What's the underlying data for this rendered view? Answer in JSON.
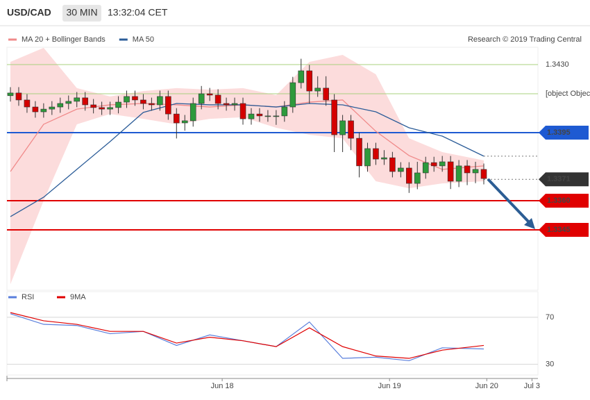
{
  "header": {
    "symbol": "USD/CAD",
    "interval": "30 MIN",
    "time": "13:32:04 CET"
  },
  "chart_data": [
    {
      "type": "candlestick",
      "legend": [
        {
          "name": "MA 20 + Bollinger Bands",
          "color": "#f08a8a"
        },
        {
          "name": "MA 50",
          "color": "#2b5c98"
        }
      ],
      "credit": "Research © 2019 Trading Central",
      "ylim": [
        1.3315,
        1.344
      ],
      "xlim": [
        0,
        57
      ],
      "open": [
        1.3414,
        1.34154,
        1.34118,
        1.34082,
        1.34057,
        1.34071,
        1.34082,
        1.341,
        1.34111,
        1.34129,
        1.34093,
        1.34079,
        1.34071,
        1.34079,
        1.34107,
        1.34136,
        1.34118,
        1.341,
        1.34093,
        1.34136,
        1.34046,
        1.34,
        1.34011,
        1.341,
        1.3415,
        1.34143,
        1.341,
        1.34093,
        1.341,
        1.34021,
        1.34046,
        1.34036,
        1.34036,
        1.34036,
        1.34082,
        1.34207,
        1.34268,
        1.34164,
        1.34179,
        1.34118,
        1.33939,
        1.34011,
        1.33921,
        1.33779,
        1.33868,
        1.33814,
        1.33821,
        1.3375,
        1.33768,
        1.33689,
        1.33743,
        1.33796,
        1.33779,
        1.338,
        1.337,
        1.33779,
        1.33743,
        1.33761
      ],
      "high": [
        1.34184,
        1.34184,
        1.34148,
        1.34112,
        1.34101,
        1.34112,
        1.3413,
        1.34141,
        1.34159,
        1.34159,
        1.34123,
        1.34109,
        1.34109,
        1.34137,
        1.34166,
        1.34166,
        1.34148,
        1.3413,
        1.34166,
        1.34166,
        1.34076,
        1.34041,
        1.3413,
        1.3419,
        1.3418,
        1.34173,
        1.3413,
        1.3413,
        1.3413,
        1.34076,
        1.34076,
        1.34066,
        1.34066,
        1.34112,
        1.34237,
        1.3433,
        1.34298,
        1.3424,
        1.3424,
        1.34148,
        1.34041,
        1.34041,
        1.33951,
        1.33898,
        1.33898,
        1.3386,
        1.33851,
        1.33798,
        1.33798,
        1.338,
        1.33826,
        1.33826,
        1.3383,
        1.3383,
        1.33809,
        1.33809,
        1.338,
        1.33791
      ],
      "low": [
        1.3411,
        1.34088,
        1.34052,
        1.34027,
        1.34027,
        1.34041,
        1.34052,
        1.3407,
        1.34081,
        1.34063,
        1.34049,
        1.34041,
        1.34041,
        1.34049,
        1.34077,
        1.34088,
        1.3407,
        1.34063,
        1.34063,
        1.34016,
        1.3392,
        1.3396,
        1.33981,
        1.3407,
        1.34113,
        1.3407,
        1.34063,
        1.34063,
        1.33991,
        1.33991,
        1.34006,
        1.34006,
        1.3399,
        1.34006,
        1.34052,
        1.34177,
        1.341,
        1.34134,
        1.34088,
        1.3385,
        1.3385,
        1.3386,
        1.3372,
        1.33749,
        1.33784,
        1.33784,
        1.3372,
        1.3372,
        1.3364,
        1.33659,
        1.33713,
        1.33749,
        1.33749,
        1.3366,
        1.3367,
        1.3368,
        1.3369,
        1.33684
      ],
      "close": [
        1.34154,
        1.34118,
        1.34082,
        1.34057,
        1.34071,
        1.34082,
        1.341,
        1.34111,
        1.34129,
        1.34093,
        1.34079,
        1.34071,
        1.34079,
        1.34107,
        1.34136,
        1.34118,
        1.341,
        1.34093,
        1.34136,
        1.34046,
        1.34,
        1.34011,
        1.341,
        1.3415,
        1.34143,
        1.341,
        1.34093,
        1.341,
        1.34021,
        1.34046,
        1.34036,
        1.34036,
        1.34036,
        1.34082,
        1.34207,
        1.34268,
        1.34164,
        1.34179,
        1.34118,
        1.33939,
        1.34011,
        1.33921,
        1.33779,
        1.33868,
        1.33814,
        1.33821,
        1.3375,
        1.33768,
        1.33689,
        1.33743,
        1.33796,
        1.33779,
        1.338,
        1.337,
        1.33779,
        1.33743,
        1.33761,
        1.33714
      ],
      "up_color": "#2e9a3c",
      "down_color": "#d40000",
      "overlay_x": [
        0,
        4,
        8,
        12,
        16,
        20,
        24,
        28,
        32,
        36,
        40,
        44,
        48,
        52,
        57
      ],
      "band_upper": [
        1.34314,
        1.34386,
        1.34179,
        1.34136,
        1.34164,
        1.34179,
        1.34171,
        1.34179,
        1.34143,
        1.34314,
        1.3435,
        1.3425,
        1.33921,
        1.3385,
        1.33807
      ],
      "band_lower": [
        1.33171,
        1.336,
        1.33993,
        1.34046,
        1.34021,
        1.33993,
        1.34021,
        1.34029,
        1.33975,
        1.33939,
        1.33921,
        1.337,
        1.33664,
        1.33689,
        1.337
      ],
      "band_color": "#fcdcdc",
      "ma20": [
        1.3375,
        1.33993,
        1.34071,
        1.34093,
        1.341,
        1.34093,
        1.34082,
        1.34093,
        1.34082,
        1.34107,
        1.34118,
        1.33957,
        1.33832,
        1.33761,
        1.33779
      ],
      "ma50": [
        1.33518,
        1.33618,
        1.33761,
        1.33904,
        1.34054,
        1.341,
        1.34093,
        1.34093,
        1.34082,
        1.341,
        1.34093,
        1.34057,
        1.33975,
        1.33932,
        1.33829
      ],
      "levels": [
        {
          "value": 1.343,
          "label": "1.3430",
          "color": "#a8d07e",
          "style": "plain"
        },
        {
          "value": 1.3415,
          "color": "#a8d07e",
          "style": "plain"
        },
        {
          "value": 1.3395,
          "color": "#1e5ad2",
          "style": "box"
        },
        {
          "value": 1.3371,
          "color": "#333333",
          "style": "dotted"
        },
        {
          "value": 1.336,
          "label": "1.3360",
          "color": "#e00000",
          "style": "box"
        },
        {
          "value": 1.3345,
          "color": "#e00000",
          "style": "box"
        }
      ]
    },
    {
      "type": "line",
      "series": [
        {
          "name": "RSI",
          "color": "#5a7fdc",
          "values": [
            73,
            64,
            63,
            56,
            58,
            46,
            55,
            50,
            45,
            66,
            35,
            36,
            33,
            44,
            43
          ]
        },
        {
          "name": "9MA",
          "color": "#e00000",
          "values": [
            74,
            67,
            64,
            58,
            58,
            48,
            53,
            50,
            45,
            61,
            45,
            37,
            35,
            42,
            46
          ]
        }
      ],
      "x": [
        0,
        4,
        8,
        12,
        16,
        20,
        24,
        28,
        32,
        36,
        40,
        44,
        48,
        52,
        57
      ],
      "ylim": [
        22,
        80
      ],
      "yticks": [
        30,
        70
      ],
      "grid": true,
      "xticks": [
        {
          "value": 25.5,
          "label": "Jun 18"
        },
        {
          "value": 45.65,
          "label": "Jun 19"
        },
        {
          "value": 57.36,
          "label": "Jun 20"
        },
        {
          "value": 62.8,
          "label": "Jul 3"
        }
      ]
    }
  ]
}
